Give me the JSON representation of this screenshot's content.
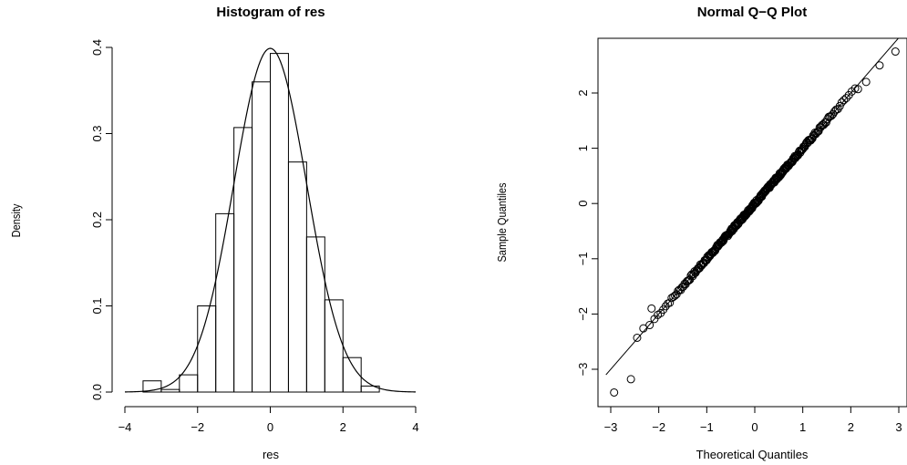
{
  "chart_data": [
    {
      "type": "bar",
      "subtype": "histogram-with-density-curve",
      "title": "Histogram of res",
      "xlabel": "res",
      "ylabel": "Density",
      "xlim": [
        -4,
        4
      ],
      "ylim": [
        0,
        0.4
      ],
      "xticks": [
        -4,
        -2,
        0,
        2,
        4
      ],
      "yticks": [
        0.0,
        0.1,
        0.2,
        0.3,
        0.4
      ],
      "xtick_labels": [
        "−4",
        "−2",
        "0",
        "2",
        "4"
      ],
      "ytick_labels": [
        "0.0",
        "0.1",
        "0.2",
        "0.3",
        "0.4"
      ],
      "bin_edges": [
        -3.5,
        -3.0,
        -2.5,
        -2.0,
        -1.5,
        -1.0,
        -0.5,
        0.0,
        0.5,
        1.0,
        1.5,
        2.0,
        2.5,
        3.0
      ],
      "values": [
        0.013,
        0.003,
        0.02,
        0.1,
        0.207,
        0.307,
        0.36,
        0.393,
        0.267,
        0.18,
        0.107,
        0.04,
        0.007
      ],
      "curve": {
        "distribution": "normal",
        "mean": 0,
        "sd": 1,
        "x_range": [
          -4,
          4
        ]
      },
      "grid": false
    },
    {
      "type": "scatter",
      "subtype": "normal-qq-plot",
      "title": "Normal Q−Q Plot",
      "xlabel": "Theoretical Quantiles",
      "ylabel": "Sample Quantiles",
      "xlim": [
        -3.1,
        3.1
      ],
      "ylim": [
        -3.6,
        2.9
      ],
      "xticks": [
        -3,
        -2,
        -1,
        0,
        1,
        2,
        3
      ],
      "yticks": [
        -3,
        -2,
        -1,
        0,
        1,
        2
      ],
      "xtick_labels": [
        "−3",
        "−2",
        "−1",
        "0",
        "1",
        "2",
        "3"
      ],
      "ytick_labels": [
        "−3",
        "−2",
        "−1",
        "0",
        "1",
        "2"
      ],
      "reference_line": {
        "intercept": 0,
        "slope": 1.0
      },
      "points": {
        "n": 300,
        "outliers": [
          [
            -2.93,
            -3.42
          ],
          [
            -2.58,
            -3.18
          ],
          [
            -2.45,
            -2.43
          ],
          [
            -2.32,
            -2.26
          ],
          [
            -2.19,
            -2.2
          ],
          [
            -2.15,
            -1.9
          ],
          [
            2.15,
            2.07
          ],
          [
            2.32,
            2.2
          ],
          [
            2.6,
            2.5
          ],
          [
            2.93,
            2.75
          ]
        ]
      },
      "grid": false
    }
  ]
}
